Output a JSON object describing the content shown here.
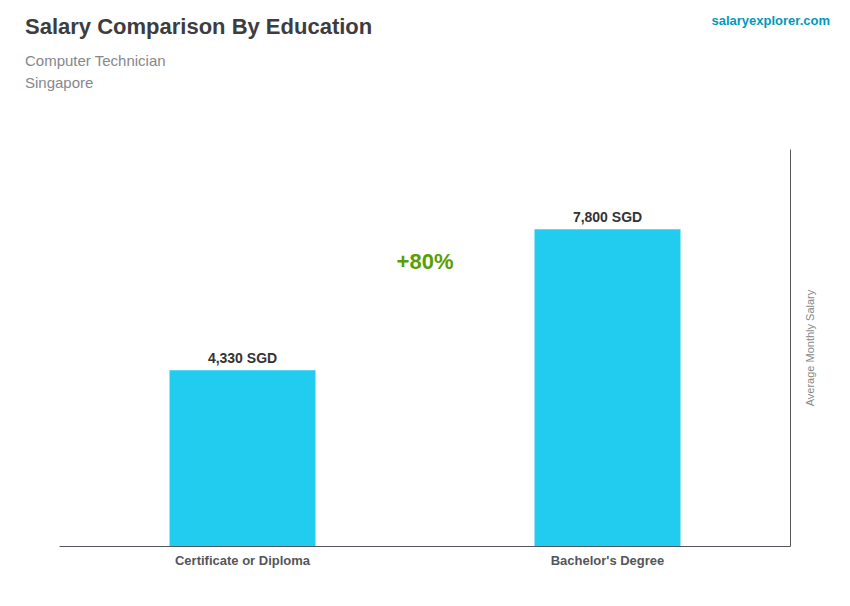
{
  "chart_data": {
    "type": "bar",
    "title": "Salary Comparison By Education",
    "subtitle": [
      "Computer Technician",
      "Singapore"
    ],
    "annotations": [
      "+80%",
      "salaryexplorer.com"
    ],
    "ylabel": "Average Monthly Salary",
    "categories": [
      "Certificate or Diploma",
      "Bachelor's Degree"
    ],
    "values": [
      4330,
      7800
    ],
    "value_labels": [
      "4,330 SGD",
      "7,800 SGD"
    ],
    "data_labels": true,
    "color": "#22ccee",
    "ylim": [
      0,
      9750
    ],
    "tick_labels": "x",
    "grid": false
  }
}
